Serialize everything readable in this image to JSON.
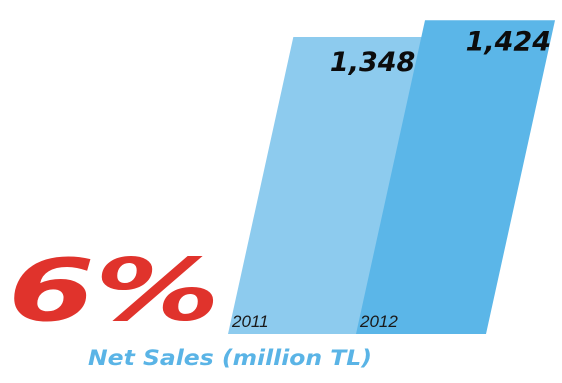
{
  "chart_data": {
    "type": "bar",
    "title": "Net Sales (million TL)",
    "categories": [
      "2011",
      "2012"
    ],
    "values": [
      1348,
      1424
    ],
    "value_labels": [
      "1,348",
      "1,424"
    ],
    "growth_label": "6%",
    "colors": {
      "bar_2011": "#8dcbee",
      "bar_2012": "#5bb6e8",
      "growth": "#e0332c",
      "title": "#5ab4e6"
    }
  }
}
